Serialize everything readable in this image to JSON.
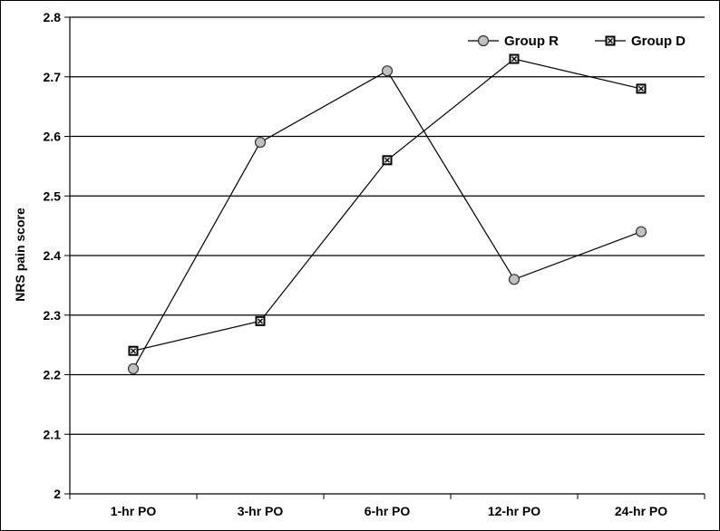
{
  "chart_data": {
    "type": "line",
    "title": "",
    "xlabel": "",
    "ylabel": "NRS pain score",
    "categories": [
      "1-hr PO",
      "3-hr PO",
      "6-hr PO",
      "12-hr PO",
      "24-hr PO"
    ],
    "y_ticks": [
      "2",
      "2.1",
      "2.2",
      "2.3",
      "2.4",
      "2.5",
      "2.6",
      "2.7",
      "2.8"
    ],
    "ylim": [
      2,
      2.8
    ],
    "grid": true,
    "legend_position": "top-right",
    "series": [
      {
        "name": "Group R",
        "marker": "circle",
        "marker_color": "#c0c0c0",
        "values": [
          2.21,
          2.59,
          2.71,
          2.36,
          2.44
        ]
      },
      {
        "name": "Group D",
        "marker": "square-x",
        "marker_color": "#ffffff",
        "values": [
          2.24,
          2.29,
          2.56,
          2.73,
          2.68
        ]
      }
    ]
  }
}
